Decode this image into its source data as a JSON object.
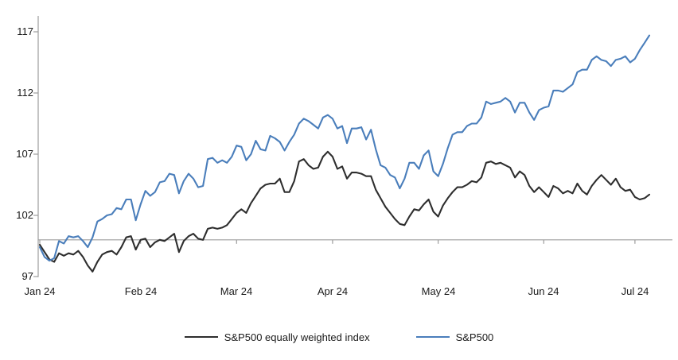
{
  "chart_data": {
    "type": "line",
    "title": "",
    "x_axis": {
      "tick_labels": [
        "Jan 24",
        "Feb 24",
        "Mar 24",
        "Apr 24",
        "May 24",
        "Jun 24",
        "Jul 24"
      ],
      "start_date": "2024-01-02",
      "end_date": "2024-07-05"
    },
    "y_axis": {
      "tick_labels": [
        "117",
        "112",
        "107",
        "102",
        "97"
      ],
      "ticks": [
        117,
        112,
        107,
        102,
        97
      ],
      "range": [
        96.7,
        118.3
      ],
      "baseline_value": 100,
      "grid": "off"
    },
    "legend_position": "bottom-center",
    "colors": {
      "sp500": "#4a7ebb",
      "sp500_equal_weight": "#2e2e2e",
      "axis_gray": "#9c9c9c",
      "text": "#1a1a1a"
    },
    "dates": [
      "2024-01-02",
      "2024-01-03",
      "2024-01-04",
      "2024-01-05",
      "2024-01-08",
      "2024-01-09",
      "2024-01-10",
      "2024-01-11",
      "2024-01-12",
      "2024-01-16",
      "2024-01-17",
      "2024-01-18",
      "2024-01-19",
      "2024-01-22",
      "2024-01-23",
      "2024-01-24",
      "2024-01-25",
      "2024-01-26",
      "2024-01-29",
      "2024-01-30",
      "2024-01-31",
      "2024-02-01",
      "2024-02-02",
      "2024-02-05",
      "2024-02-06",
      "2024-02-07",
      "2024-02-08",
      "2024-02-09",
      "2024-02-12",
      "2024-02-13",
      "2024-02-14",
      "2024-02-15",
      "2024-02-16",
      "2024-02-20",
      "2024-02-21",
      "2024-02-22",
      "2024-02-23",
      "2024-02-26",
      "2024-02-27",
      "2024-02-28",
      "2024-02-29",
      "2024-03-01",
      "2024-03-04",
      "2024-03-05",
      "2024-03-06",
      "2024-03-07",
      "2024-03-08",
      "2024-03-11",
      "2024-03-12",
      "2024-03-13",
      "2024-03-14",
      "2024-03-15",
      "2024-03-18",
      "2024-03-19",
      "2024-03-20",
      "2024-03-21",
      "2024-03-22",
      "2024-03-25",
      "2024-03-26",
      "2024-03-27",
      "2024-03-28",
      "2024-04-01",
      "2024-04-02",
      "2024-04-03",
      "2024-04-04",
      "2024-04-05",
      "2024-04-08",
      "2024-04-09",
      "2024-04-10",
      "2024-04-11",
      "2024-04-12",
      "2024-04-15",
      "2024-04-16",
      "2024-04-17",
      "2024-04-18",
      "2024-04-19",
      "2024-04-22",
      "2024-04-23",
      "2024-04-24",
      "2024-04-25",
      "2024-04-26",
      "2024-04-29",
      "2024-04-30",
      "2024-05-01",
      "2024-05-02",
      "2024-05-03",
      "2024-05-06",
      "2024-05-07",
      "2024-05-08",
      "2024-05-09",
      "2024-05-10",
      "2024-05-13",
      "2024-05-14",
      "2024-05-15",
      "2024-05-16",
      "2024-05-17",
      "2024-05-20",
      "2024-05-21",
      "2024-05-22",
      "2024-05-23",
      "2024-05-24",
      "2024-05-28",
      "2024-05-29",
      "2024-05-30",
      "2024-05-31",
      "2024-06-03",
      "2024-06-04",
      "2024-06-05",
      "2024-06-06",
      "2024-06-07",
      "2024-06-10",
      "2024-06-11",
      "2024-06-12",
      "2024-06-13",
      "2024-06-14",
      "2024-06-17",
      "2024-06-18",
      "2024-06-20",
      "2024-06-21",
      "2024-06-24",
      "2024-06-25",
      "2024-06-26",
      "2024-06-27",
      "2024-06-28",
      "2024-07-01",
      "2024-07-02",
      "2024-07-03",
      "2024-07-05"
    ],
    "series": [
      {
        "name": "S&P500 equally weighted index",
        "color": "#2e2e2e",
        "values": [
          99.6,
          99.0,
          98.4,
          98.2,
          98.9,
          98.7,
          98.9,
          98.8,
          99.1,
          98.6,
          97.9,
          97.4,
          98.2,
          98.8,
          99.0,
          99.1,
          98.8,
          99.4,
          100.2,
          100.3,
          99.2,
          100.0,
          100.1,
          99.4,
          99.8,
          100.0,
          99.9,
          100.2,
          100.5,
          99.0,
          99.9,
          100.3,
          100.5,
          100.1,
          100.0,
          100.9,
          101.0,
          100.9,
          101.0,
          101.2,
          101.7,
          102.2,
          102.5,
          102.2,
          103.0,
          103.6,
          104.2,
          104.5,
          104.6,
          104.6,
          105.0,
          103.9,
          103.9,
          104.8,
          106.4,
          106.6,
          106.1,
          105.8,
          105.9,
          106.8,
          107.2,
          106.8,
          105.8,
          106.0,
          105.0,
          105.5,
          105.5,
          105.4,
          105.2,
          105.2,
          104.1,
          103.4,
          102.7,
          102.2,
          101.7,
          101.3,
          101.2,
          101.9,
          102.5,
          102.4,
          102.9,
          103.3,
          102.3,
          101.9,
          102.8,
          103.4,
          103.9,
          104.3,
          104.3,
          104.5,
          104.8,
          104.7,
          105.1,
          106.3,
          106.4,
          106.2,
          106.3,
          106.1,
          105.9,
          105.1,
          105.6,
          105.3,
          104.4,
          103.9,
          104.3,
          103.9,
          103.5,
          104.4,
          104.2,
          103.8,
          104.0,
          103.8,
          104.6,
          104.0,
          103.7,
          104.4,
          104.9,
          105.3,
          104.9,
          104.5,
          105.0,
          104.3,
          104.0,
          104.1,
          103.5,
          103.3,
          103.4,
          103.7
        ]
      },
      {
        "name": "S&P500",
        "color": "#4a7ebb",
        "values": [
          99.4,
          98.6,
          98.3,
          98.5,
          99.9,
          99.7,
          100.3,
          100.2,
          100.3,
          99.9,
          99.4,
          100.2,
          101.5,
          101.7,
          102.0,
          102.1,
          102.6,
          102.5,
          103.3,
          103.3,
          101.6,
          102.9,
          104.0,
          103.6,
          103.9,
          104.7,
          104.8,
          105.4,
          105.3,
          103.8,
          104.8,
          105.4,
          105.0,
          104.3,
          104.4,
          106.6,
          106.7,
          106.3,
          106.5,
          106.3,
          106.8,
          107.7,
          107.6,
          106.5,
          107.0,
          108.1,
          107.4,
          107.3,
          108.5,
          108.3,
          108.0,
          107.3,
          108.0,
          108.6,
          109.5,
          109.9,
          109.7,
          109.4,
          109.1,
          110.0,
          110.2,
          109.9,
          109.1,
          109.3,
          107.9,
          109.1,
          109.1,
          109.2,
          108.2,
          109.0,
          107.4,
          106.1,
          105.9,
          105.3,
          105.1,
          104.2,
          105.0,
          106.3,
          106.3,
          105.8,
          106.9,
          107.3,
          105.6,
          105.2,
          106.2,
          107.5,
          108.6,
          108.8,
          108.8,
          109.3,
          109.5,
          109.5,
          110.0,
          111.3,
          111.1,
          111.2,
          111.3,
          111.6,
          111.3,
          110.4,
          111.2,
          111.2,
          110.4,
          109.8,
          110.6,
          110.8,
          110.9,
          112.2,
          112.2,
          112.1,
          112.4,
          112.7,
          113.7,
          113.9,
          113.9,
          114.7,
          115.0,
          114.7,
          114.6,
          114.2,
          114.7,
          114.8,
          115.0,
          114.5,
          114.8,
          115.5,
          116.1,
          116.7
        ]
      }
    ]
  }
}
